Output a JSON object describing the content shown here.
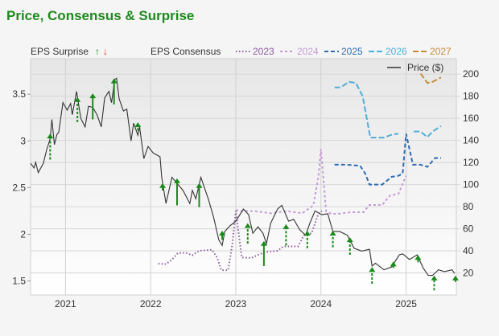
{
  "title": "Price, Consensus & Surprise",
  "chart_data": {
    "type": "line",
    "title": "Price, Consensus & Surprise",
    "x_ticks": [
      2021,
      2022,
      2023,
      2024,
      2025
    ],
    "xlim": [
      2020.59,
      2025.59
    ],
    "left_axis": {
      "ticks": [
        "1.5",
        "2",
        "2.5",
        "3",
        "3.5"
      ],
      "range": [
        1.35,
        3.88
      ]
    },
    "right_axis": {
      "ticks": [
        "20",
        "40",
        "60",
        "80",
        "100",
        "120",
        "140",
        "160",
        "180",
        "200"
      ],
      "range": [
        0,
        214
      ]
    },
    "grid": true,
    "legend": {
      "surprise_label": "EPS Surprise",
      "up_glyph": "↑",
      "down_glyph": "↓",
      "consensus_label": "EPS Consensus",
      "price_label": "Price ($)"
    },
    "colors": {
      "price": "#333333",
      "up": "#1a8a1a",
      "down": "#dd2222",
      "2023": "#8a5a9e",
      "2024": "#c49ad6",
      "2025": "#2d6cb4",
      "2026": "#4eaed6",
      "2027": "#c48c38"
    },
    "price": [
      [
        2020.59,
        2.76
      ],
      [
        2020.63,
        2.71
      ],
      [
        2020.65,
        2.77
      ],
      [
        2020.68,
        2.66
      ],
      [
        2020.74,
        2.76
      ],
      [
        2020.78,
        2.91
      ],
      [
        2020.82,
        3.02
      ],
      [
        2020.84,
        3.23
      ],
      [
        2020.87,
        2.96
      ],
      [
        2020.9,
        3.07
      ],
      [
        2020.92,
        3.09
      ],
      [
        2020.97,
        3.41
      ],
      [
        2021.02,
        3.33
      ],
      [
        2021.06,
        3.4
      ],
      [
        2021.08,
        3.28
      ],
      [
        2021.13,
        3.53
      ],
      [
        2021.18,
        3.24
      ],
      [
        2021.23,
        3.15
      ],
      [
        2021.27,
        3.37
      ],
      [
        2021.32,
        3.36
      ],
      [
        2021.37,
        3.28
      ],
      [
        2021.42,
        3.15
      ],
      [
        2021.46,
        3.46
      ],
      [
        2021.51,
        3.53
      ],
      [
        2021.54,
        3.41
      ],
      [
        2021.58,
        3.66
      ],
      [
        2021.6,
        3.67
      ],
      [
        2021.63,
        3.45
      ],
      [
        2021.68,
        3.32
      ],
      [
        2021.72,
        3.34
      ],
      [
        2021.77,
        3.0
      ],
      [
        2021.8,
        3.19
      ],
      [
        2021.85,
        3.06
      ],
      [
        2021.87,
        3.15
      ],
      [
        2021.92,
        2.81
      ],
      [
        2021.97,
        2.94
      ],
      [
        2022.03,
        2.87
      ],
      [
        2022.11,
        2.83
      ],
      [
        2022.13,
        2.61
      ],
      [
        2022.18,
        2.33
      ],
      [
        2022.25,
        2.61
      ],
      [
        2022.38,
        2.47
      ],
      [
        2022.46,
        2.33
      ],
      [
        2022.49,
        2.47
      ],
      [
        2022.53,
        2.38
      ],
      [
        2022.59,
        2.61
      ],
      [
        2022.68,
        2.37
      ],
      [
        2022.74,
        2.18
      ],
      [
        2022.8,
        1.94
      ],
      [
        2022.84,
        1.88
      ],
      [
        2022.87,
        2.03
      ],
      [
        2022.93,
        2.09
      ],
      [
        2023.0,
        2.14
      ],
      [
        2023.09,
        2.27
      ],
      [
        2023.15,
        2.21
      ],
      [
        2023.2,
        2.01
      ],
      [
        2023.26,
        2.08
      ],
      [
        2023.32,
        2.01
      ],
      [
        2023.36,
        1.9
      ],
      [
        2023.41,
        2.12
      ],
      [
        2023.49,
        2.27
      ],
      [
        2023.54,
        2.31
      ],
      [
        2023.62,
        2.14
      ],
      [
        2023.68,
        2.16
      ],
      [
        2023.75,
        2.05
      ],
      [
        2023.82,
        1.99
      ],
      [
        2023.87,
        2.12
      ],
      [
        2023.93,
        2.25
      ],
      [
        2024.01,
        2.21
      ],
      [
        2024.08,
        2.22
      ],
      [
        2024.14,
        2.03
      ],
      [
        2024.22,
        2.03
      ],
      [
        2024.31,
        1.99
      ],
      [
        2024.39,
        1.85
      ],
      [
        2024.48,
        1.82
      ],
      [
        2024.57,
        1.84
      ],
      [
        2024.6,
        1.66
      ],
      [
        2024.64,
        1.69
      ],
      [
        2024.74,
        1.62
      ],
      [
        2024.83,
        1.65
      ],
      [
        2024.92,
        1.78
      ],
      [
        2024.96,
        1.79
      ],
      [
        2025.04,
        1.73
      ],
      [
        2025.13,
        1.78
      ],
      [
        2025.2,
        1.64
      ],
      [
        2025.26,
        1.56
      ],
      [
        2025.31,
        1.56
      ],
      [
        2025.38,
        1.62
      ],
      [
        2025.45,
        1.6
      ],
      [
        2025.54,
        1.62
      ],
      [
        2025.57,
        1.58
      ]
    ],
    "surprises": [
      {
        "x": 2020.82,
        "from": 2.8,
        "to": 3.07,
        "dir": "up",
        "style": "dashed"
      },
      {
        "x": 2021.14,
        "from": 3.2,
        "to": 3.46,
        "dir": "up",
        "style": "dashed"
      },
      {
        "x": 2021.32,
        "from": 3.23,
        "to": 3.5,
        "dir": "up",
        "style": "solid"
      },
      {
        "x": 2021.57,
        "from": 3.39,
        "to": 3.66,
        "dir": "up",
        "style": "solid"
      },
      {
        "x": 2021.85,
        "from": 3.11,
        "to": 3.19,
        "dir": "up",
        "style": "dashed"
      },
      {
        "x": 2022.14,
        "from": 2.47,
        "to": 2.54,
        "dir": "up",
        "style": "solid"
      },
      {
        "x": 2022.31,
        "from": 2.31,
        "to": 2.59,
        "dir": "up",
        "style": "solid"
      },
      {
        "x": 2022.57,
        "from": 2.29,
        "to": 2.54,
        "dir": "up",
        "style": "solid"
      },
      {
        "x": 2022.84,
        "from": 1.94,
        "to": 2.03,
        "dir": "up",
        "style": "solid"
      },
      {
        "x": 2023.14,
        "from": 1.9,
        "to": 2.11,
        "dir": "up",
        "style": "dashed"
      },
      {
        "x": 2023.33,
        "from": 1.66,
        "to": 1.92,
        "dir": "up",
        "style": "solid"
      },
      {
        "x": 2023.59,
        "from": 1.88,
        "to": 2.1,
        "dir": "up",
        "style": "dashed"
      },
      {
        "x": 2023.84,
        "from": 1.85,
        "to": 2.03,
        "dir": "up",
        "style": "dashed"
      },
      {
        "x": 2024.14,
        "from": 1.86,
        "to": 2.03,
        "dir": "up",
        "style": "dashed"
      },
      {
        "x": 2024.34,
        "from": 1.78,
        "to": 1.96,
        "dir": "up",
        "style": "dashed"
      },
      {
        "x": 2024.6,
        "from": 1.47,
        "to": 1.64,
        "dir": "up",
        "style": "dashed"
      },
      {
        "x": 2024.85,
        "from": 1.64,
        "to": 1.7,
        "dir": "up",
        "style": "dashed"
      },
      {
        "x": 2025.14,
        "from": 1.7,
        "to": 1.77,
        "dir": "up",
        "style": "dashed"
      },
      {
        "x": 2025.33,
        "from": 1.4,
        "to": 1.55,
        "dir": "up",
        "style": "dashed"
      },
      {
        "x": 2025.58,
        "from": 1.49,
        "to": 1.55,
        "dir": "up",
        "style": "dashed"
      }
    ],
    "series": [
      {
        "name": "2023",
        "dash": "1.5,2.5",
        "segments": [
          [
            [
              2022.09,
              28.4
            ],
            [
              2022.18,
              28
            ],
            [
              2022.25,
              32
            ],
            [
              2022.32,
              38
            ],
            [
              2022.42,
              38
            ],
            [
              2022.49,
              36
            ],
            [
              2022.57,
              40
            ],
            [
              2022.72,
              41
            ],
            [
              2022.78,
              34
            ],
            [
              2022.83,
              22.5
            ],
            [
              2022.91,
              22.5
            ],
            [
              2022.96,
              46.5
            ],
            [
              2023.0,
              76
            ],
            [
              2023.07,
              34
            ],
            [
              2023.18,
              33.5
            ],
            [
              2023.28,
              37
            ],
            [
              2023.35,
              39
            ],
            [
              2023.49,
              40
            ],
            [
              2023.56,
              44
            ],
            [
              2023.73,
              44
            ],
            [
              2023.8,
              54
            ],
            [
              2023.89,
              56
            ],
            [
              2023.97,
              73.5
            ],
            [
              2024.01,
              76
            ]
          ]
        ]
      },
      {
        "name": "2024",
        "dash": "3,3",
        "segments": [
          [
            [
              2023.0,
              77
            ],
            [
              2023.07,
              76
            ],
            [
              2023.22,
              76
            ],
            [
              2023.41,
              74
            ],
            [
              2023.6,
              76
            ],
            [
              2023.78,
              74
            ],
            [
              2023.91,
              81
            ],
            [
              2023.97,
              107
            ],
            [
              2024.0,
              132
            ],
            [
              2024.06,
              76
            ],
            [
              2024.12,
              73.5
            ],
            [
              2024.2,
              73.5
            ],
            [
              2024.35,
              75
            ],
            [
              2024.5,
              75
            ],
            [
              2024.57,
              81.5
            ],
            [
              2024.72,
              81.5
            ],
            [
              2024.81,
              90
            ],
            [
              2024.91,
              91.5
            ],
            [
              2025.0,
              108
            ]
          ]
        ]
      },
      {
        "name": "2025",
        "dash": "5,3",
        "segments": [
          [
            [
              2024.16,
              118
            ],
            [
              2024.3,
              118
            ],
            [
              2024.46,
              117
            ],
            [
              2024.52,
              110
            ],
            [
              2024.57,
              100
            ],
            [
              2024.72,
              100
            ],
            [
              2024.83,
              107
            ],
            [
              2024.91,
              108
            ],
            [
              2024.96,
              110
            ],
            [
              2025.0,
              146
            ],
            [
              2025.08,
              118
            ],
            [
              2025.17,
              118
            ],
            [
              2025.25,
              116
            ],
            [
              2025.34,
              124
            ],
            [
              2025.41,
              124
            ]
          ]
        ]
      },
      {
        "name": "2026",
        "dash": "7,3",
        "segments": [
          [
            [
              2024.16,
              188
            ],
            [
              2024.23,
              188
            ],
            [
              2024.33,
              193
            ],
            [
              2024.41,
              192
            ],
            [
              2024.49,
              180
            ],
            [
              2024.58,
              142.5
            ],
            [
              2024.74,
              142.5
            ],
            [
              2024.84,
              145.5
            ],
            [
              2024.91,
              146
            ]
          ],
          [
            [
              2025.09,
              148
            ],
            [
              2025.17,
              148
            ],
            [
              2025.25,
              143
            ],
            [
              2025.31,
              148
            ],
            [
              2025.41,
              153
            ]
          ]
        ]
      },
      {
        "name": "2027",
        "dash": "7,3",
        "segments": [
          [
            [
              2025.17,
              200.5
            ],
            [
              2025.25,
              192
            ],
            [
              2025.31,
              193
            ],
            [
              2025.41,
              197
            ]
          ]
        ]
      }
    ]
  }
}
